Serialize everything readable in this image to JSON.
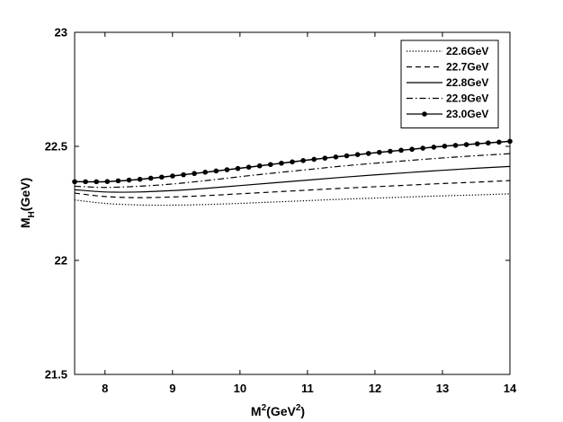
{
  "chart_data": {
    "type": "line",
    "xlabel": {
      "base": "M",
      "sup": "2",
      "mid": "(GeV",
      "sup2": "2",
      "end": ")"
    },
    "ylabel": {
      "base": "M",
      "sub": "H",
      "end": "(GeV)"
    },
    "xlim": [
      7.55,
      14
    ],
    "ylim": [
      21.5,
      23
    ],
    "xticks": [
      8,
      9,
      10,
      11,
      12,
      13,
      14
    ],
    "yticks": [
      21.5,
      22,
      22.5,
      23
    ],
    "xtick_labels": [
      "8",
      "9",
      "10",
      "11",
      "12",
      "13",
      "14"
    ],
    "ytick_labels": [
      "21.5",
      "22",
      "22.5",
      "23"
    ],
    "grid": false,
    "legend_position": "top-right",
    "x": [
      7.55,
      8.0,
      8.5,
      9.0,
      9.5,
      10.0,
      10.5,
      11.0,
      11.5,
      12.0,
      12.5,
      13.0,
      13.5,
      14.0
    ],
    "series": [
      {
        "name": "22.6GeV",
        "style": "dotted",
        "values": [
          22.265,
          22.25,
          22.243,
          22.242,
          22.245,
          22.25,
          22.256,
          22.262,
          22.268,
          22.273,
          22.278,
          22.283,
          22.287,
          22.292
        ]
      },
      {
        "name": "22.7GeV",
        "style": "dashed",
        "values": [
          22.295,
          22.28,
          22.275,
          22.278,
          22.284,
          22.292,
          22.3,
          22.308,
          22.316,
          22.323,
          22.33,
          22.337,
          22.343,
          22.35
        ]
      },
      {
        "name": "22.8GeV",
        "style": "solid",
        "values": [
          22.31,
          22.3,
          22.3,
          22.306,
          22.316,
          22.328,
          22.34,
          22.352,
          22.364,
          22.375,
          22.385,
          22.395,
          22.404,
          22.412
        ]
      },
      {
        "name": "22.9GeV",
        "style": "dashdot",
        "values": [
          22.325,
          22.32,
          22.325,
          22.335,
          22.35,
          22.367,
          22.383,
          22.398,
          22.413,
          22.426,
          22.438,
          22.449,
          22.459,
          22.468
        ]
      },
      {
        "name": "23.0GeV",
        "style": "solid-marker",
        "values": [
          22.345,
          22.345,
          22.355,
          22.37,
          22.387,
          22.404,
          22.422,
          22.44,
          22.456,
          22.472,
          22.486,
          22.5,
          22.511,
          22.522
        ]
      }
    ]
  }
}
